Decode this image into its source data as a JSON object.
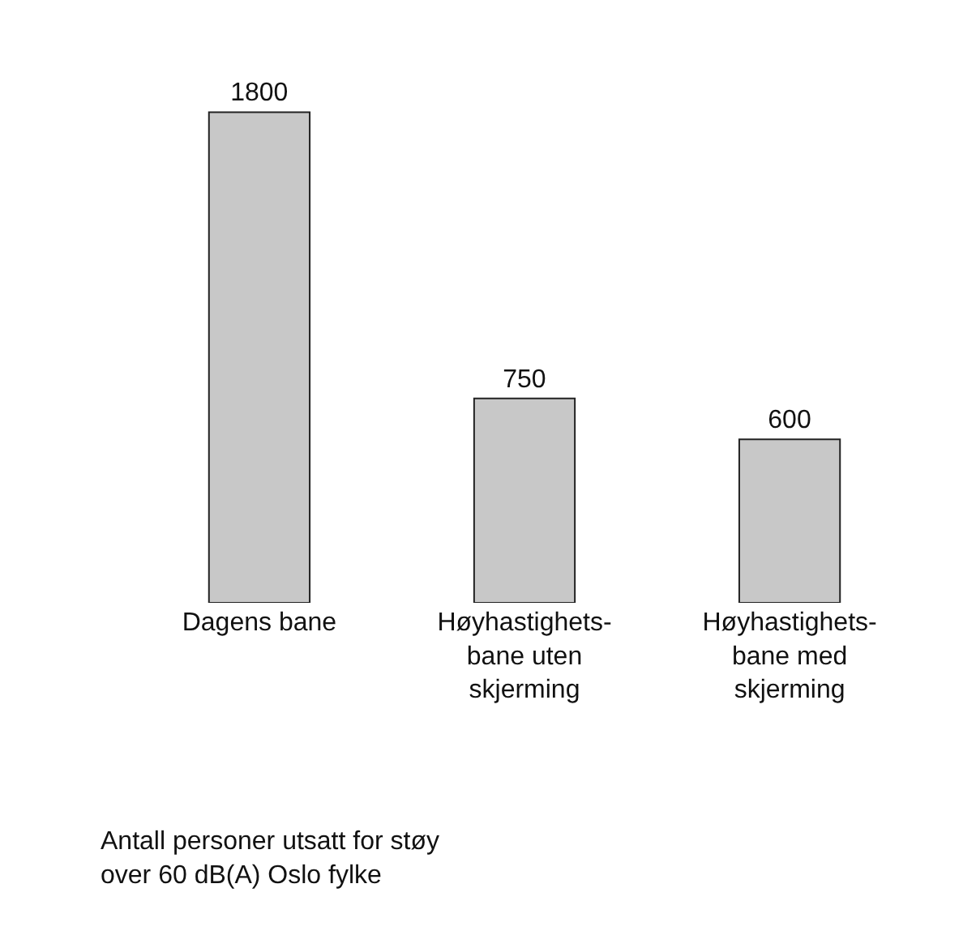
{
  "chart_data": {
    "type": "bar",
    "categories": [
      "Dagens bane",
      "Høyhastighets-\nbane uten\nskjerming",
      "Høyhastighets-\nbane med\nskjerming"
    ],
    "values": [
      1800,
      750,
      600
    ],
    "color": "#c8c8c8",
    "data_labels": true,
    "annotations": [
      "Antall personer utsatt for støy\nover 60 dB(A) Oslo fylke"
    ]
  }
}
